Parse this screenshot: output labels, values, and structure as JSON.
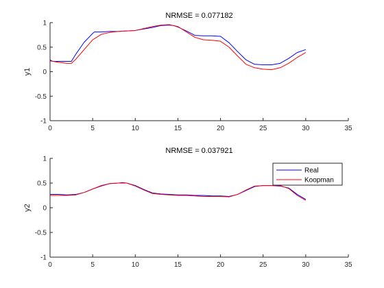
{
  "chart_data": [
    {
      "type": "line",
      "title": "NRMSE = 0.077182",
      "xlabel": "",
      "ylabel": "y1",
      "xlim": [
        0,
        35
      ],
      "ylim": [
        -1,
        1
      ],
      "xticks": [
        0,
        5,
        10,
        15,
        20,
        25,
        30,
        35
      ],
      "yticks": [
        -1,
        -0.5,
        0,
        0.5,
        1
      ],
      "xtick_labels": [
        "0",
        "5",
        "10",
        "15",
        "20",
        "25",
        "30",
        "35"
      ],
      "ytick_labels": [
        "-1",
        "-0.5",
        "0",
        "0.5",
        "1"
      ],
      "grid": false,
      "series": [
        {
          "color": "#0000ff",
          "x": [
            0,
            0.3,
            1,
            2,
            2.5,
            3,
            4,
            5,
            5.2,
            6,
            7,
            8,
            9,
            10,
            11,
            12,
            13,
            14,
            14.5,
            15,
            16,
            17,
            18,
            19,
            20,
            21,
            22,
            23,
            24,
            25,
            26,
            27,
            28,
            29,
            30
          ],
          "y": [
            0.24,
            0.21,
            0.21,
            0.21,
            0.21,
            0.35,
            0.6,
            0.78,
            0.81,
            0.81,
            0.82,
            0.82,
            0.83,
            0.84,
            0.87,
            0.9,
            0.94,
            0.95,
            0.94,
            0.91,
            0.83,
            0.74,
            0.73,
            0.73,
            0.72,
            0.59,
            0.41,
            0.24,
            0.15,
            0.14,
            0.14,
            0.17,
            0.27,
            0.39,
            0.45
          ]
        },
        {
          "color": "#ff0000",
          "x": [
            0,
            1,
            2,
            2.5,
            3,
            4,
            5,
            6,
            7,
            8,
            9,
            10,
            11,
            12,
            13,
            14,
            15,
            16,
            17,
            18,
            19,
            20,
            21,
            22,
            23,
            24,
            25,
            26,
            27,
            28,
            29,
            30
          ],
          "y": [
            0.22,
            0.19,
            0.17,
            0.17,
            0.25,
            0.45,
            0.65,
            0.76,
            0.8,
            0.82,
            0.83,
            0.84,
            0.88,
            0.92,
            0.95,
            0.96,
            0.92,
            0.81,
            0.7,
            0.65,
            0.64,
            0.62,
            0.5,
            0.32,
            0.15,
            0.08,
            0.05,
            0.04,
            0.08,
            0.17,
            0.29,
            0.39
          ]
        }
      ]
    },
    {
      "type": "line",
      "title": "NRMSE = 0.037921",
      "xlabel": "",
      "ylabel": "y2",
      "xlim": [
        0,
        35
      ],
      "ylim": [
        -1,
        1
      ],
      "xticks": [
        0,
        5,
        10,
        15,
        20,
        25,
        30,
        35
      ],
      "yticks": [
        -1,
        -0.5,
        0,
        0.5,
        1
      ],
      "xtick_labels": [
        "0",
        "5",
        "10",
        "15",
        "20",
        "25",
        "30",
        "35"
      ],
      "ytick_labels": [
        "-1",
        "-0.5",
        "0",
        "0.5",
        "1"
      ],
      "grid": false,
      "legend": {
        "placement": "top-right",
        "entries": [
          {
            "label": "Real",
            "color": "#0000ff"
          },
          {
            "label": "Koopman",
            "color": "#ff0000"
          }
        ]
      },
      "series": [
        {
          "name": "Real",
          "color": "#0000ff",
          "x": [
            0,
            1,
            2,
            3,
            4,
            5,
            6,
            7,
            8,
            8.5,
            9,
            10,
            11,
            12,
            13,
            14,
            15,
            16,
            17,
            18,
            19,
            20,
            21,
            22,
            23,
            24,
            25,
            26,
            27,
            28,
            29,
            30
          ],
          "y": [
            0.27,
            0.27,
            0.26,
            0.27,
            0.31,
            0.38,
            0.44,
            0.49,
            0.5,
            0.51,
            0.5,
            0.45,
            0.37,
            0.3,
            0.28,
            0.27,
            0.26,
            0.26,
            0.25,
            0.25,
            0.24,
            0.24,
            0.23,
            0.27,
            0.35,
            0.43,
            0.45,
            0.45,
            0.44,
            0.4,
            0.27,
            0.17
          ]
        },
        {
          "name": "Koopman",
          "color": "#ff0000",
          "x": [
            0,
            1,
            2,
            3,
            4,
            5,
            6,
            7,
            8,
            9,
            10,
            11,
            12,
            13,
            14,
            15,
            16,
            17,
            18,
            19,
            20,
            21,
            22,
            23,
            24,
            25,
            26,
            27,
            28,
            29,
            30
          ],
          "y": [
            0.25,
            0.25,
            0.25,
            0.26,
            0.31,
            0.38,
            0.45,
            0.49,
            0.5,
            0.5,
            0.44,
            0.36,
            0.29,
            0.27,
            0.26,
            0.25,
            0.25,
            0.24,
            0.23,
            0.23,
            0.23,
            0.22,
            0.27,
            0.36,
            0.44,
            0.45,
            0.45,
            0.45,
            0.39,
            0.25,
            0.15
          ]
        }
      ]
    }
  ]
}
